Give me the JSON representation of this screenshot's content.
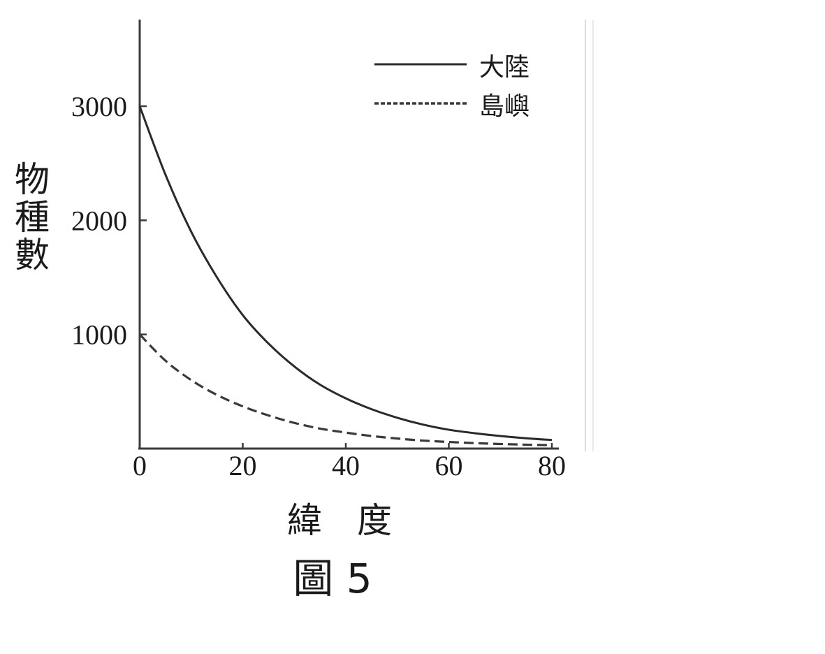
{
  "chart_data": {
    "type": "line",
    "caption": "圖 5",
    "xlabel": "緯　度",
    "ylabel": "物種數",
    "xlim": [
      0,
      80
    ],
    "ylim": [
      0,
      3000
    ],
    "x_ticks": [
      "0",
      "20",
      "40",
      "60",
      "80"
    ],
    "y_ticks": [
      "1000",
      "2000",
      "3000"
    ],
    "grid": false,
    "legend_position": "top-right",
    "x": [
      0,
      5,
      10,
      15,
      20,
      25,
      30,
      35,
      40,
      45,
      50,
      55,
      60,
      65,
      70,
      75,
      80
    ],
    "series": [
      {
        "name": "大陸",
        "style": "solid",
        "values": [
          3000,
          2400,
          1900,
          1500,
          1170,
          920,
          720,
          560,
          440,
          345,
          270,
          210,
          165,
          135,
          110,
          90,
          75
        ]
      },
      {
        "name": "島嶼",
        "style": "dashed",
        "values": [
          1000,
          770,
          600,
          470,
          370,
          290,
          225,
          175,
          140,
          110,
          88,
          70,
          58,
          48,
          40,
          34,
          30
        ]
      }
    ]
  }
}
